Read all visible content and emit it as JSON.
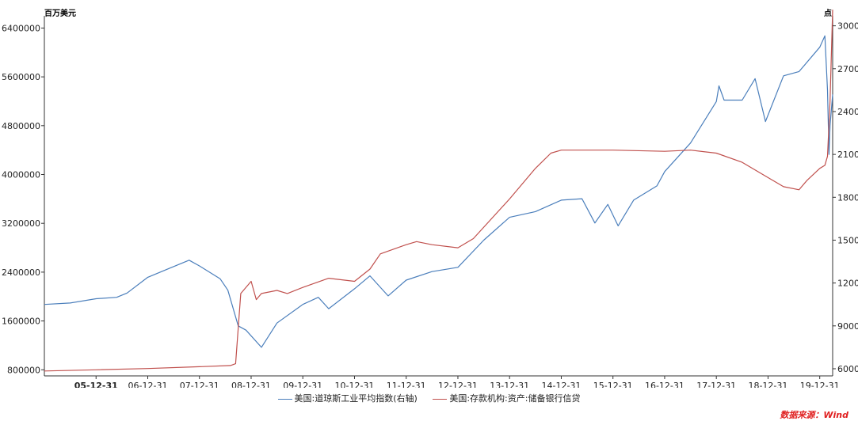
{
  "colors": {
    "dow": "#4a7ebb",
    "credit": "#c0504d",
    "source": "#e02020",
    "axis": "#333333"
  },
  "chart_data": {
    "type": "line",
    "xlabel": "",
    "y_left": {
      "unit": "百万美元",
      "range": [
        700000,
        6600000
      ],
      "ticks": [
        "800000",
        "1600000",
        "2400000",
        "3200000",
        "4000000",
        "4800000",
        "5600000",
        "6400000"
      ]
    },
    "y_right": {
      "unit": "点",
      "range": [
        5500,
        30700
      ],
      "ticks": [
        "6000",
        "9000",
        "12000",
        "15000",
        "18000",
        "21000",
        "24000",
        "27000",
        "30000"
      ]
    },
    "x_range": [
      2005.0,
      2020.25
    ],
    "x_ticks": [
      {
        "label": "05-12-31",
        "x": 2006.0,
        "bold": true
      },
      {
        "label": "06-12-31",
        "x": 2007.0
      },
      {
        "label": "07-12-31",
        "x": 2008.0
      },
      {
        "label": "08-12-31",
        "x": 2009.0
      },
      {
        "label": "09-12-31",
        "x": 2010.0
      },
      {
        "label": "10-12-31",
        "x": 2011.0
      },
      {
        "label": "11-12-31",
        "x": 2012.0
      },
      {
        "label": "12-12-31",
        "x": 2013.0
      },
      {
        "label": "13-12-31",
        "x": 2014.0
      },
      {
        "label": "14-12-31",
        "x": 2015.0
      },
      {
        "label": "15-12-31",
        "x": 2016.0
      },
      {
        "label": "16-12-31",
        "x": 2017.0
      },
      {
        "label": "17-12-31",
        "x": 2018.0
      },
      {
        "label": "18-12-31",
        "x": 2019.0
      },
      {
        "label": "19-12-31",
        "x": 2020.0
      }
    ],
    "series": [
      {
        "name": "美国:道琼斯工业平均指数(右轴)",
        "axis": "right",
        "x": [
          2005.0,
          2005.5,
          2006.0,
          2006.4,
          2006.6,
          2007.0,
          2007.4,
          2007.8,
          2008.0,
          2008.4,
          2008.55,
          2008.75,
          2008.9,
          2009.2,
          2009.5,
          2010.0,
          2010.3,
          2010.5,
          2011.0,
          2011.3,
          2011.65,
          2012.0,
          2012.5,
          2013.0,
          2013.5,
          2014.0,
          2014.5,
          2015.0,
          2015.4,
          2015.65,
          2015.9,
          2016.1,
          2016.4,
          2016.85,
          2017.0,
          2017.5,
          2018.0,
          2018.05,
          2018.15,
          2018.5,
          2018.75,
          2018.95,
          2019.3,
          2019.6,
          2020.0,
          2020.1,
          2020.15,
          2020.18,
          2020.2,
          2020.25
        ],
        "values": [
          10500,
          10600,
          10900,
          11000,
          11300,
          12400,
          13000,
          13600,
          13200,
          12300,
          11500,
          9000,
          8700,
          7500,
          9200,
          10500,
          11000,
          10200,
          11600,
          12500,
          11100,
          12200,
          12800,
          13100,
          15000,
          16600,
          17000,
          17800,
          17900,
          16200,
          17500,
          16000,
          17800,
          18800,
          19800,
          21800,
          24700,
          25800,
          24800,
          24800,
          26300,
          23300,
          26500,
          26800,
          28500,
          29300,
          25500,
          21000,
          23000,
          25200
        ]
      },
      {
        "name": "美国:存款机构:资产:储备银行信贷",
        "axis": "left",
        "x": [
          2005.0,
          2006.0,
          2007.0,
          2008.0,
          2008.6,
          2008.7,
          2008.8,
          2009.0,
          2009.1,
          2009.2,
          2009.5,
          2009.7,
          2010.0,
          2010.5,
          2011.0,
          2011.3,
          2011.5,
          2012.0,
          2012.2,
          2012.5,
          2013.0,
          2013.3,
          2014.0,
          2014.5,
          2014.8,
          2015.0,
          2016.0,
          2017.0,
          2017.5,
          2018.0,
          2018.5,
          2019.0,
          2019.3,
          2019.6,
          2019.75,
          2020.0,
          2020.1,
          2020.15,
          2020.2,
          2020.25
        ],
        "values": [
          780000,
          800000,
          820000,
          850000,
          870000,
          900000,
          2050000,
          2250000,
          1950000,
          2050000,
          2100000,
          2050000,
          2150000,
          2300000,
          2250000,
          2450000,
          2700000,
          2850000,
          2900000,
          2850000,
          2800000,
          2950000,
          3600000,
          4100000,
          4350000,
          4400000,
          4400000,
          4380000,
          4400000,
          4350000,
          4200000,
          3950000,
          3800000,
          3750000,
          3900000,
          4100000,
          4150000,
          4300000,
          5200000,
          6700000
        ]
      }
    ]
  },
  "legend": {
    "dow": "美国:道琼斯工业平均指数(右轴)",
    "credit": "美国:存款机构:资产:储备银行信贷"
  },
  "source": "数据来源：Wind"
}
